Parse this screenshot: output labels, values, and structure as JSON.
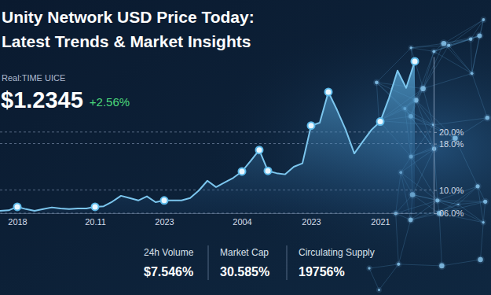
{
  "chart_data": {
    "type": "line",
    "title": "Unity Network USD Price Today:",
    "subtitle": "Latest Trends & Market Insights",
    "annotations": [
      "Real:TIME UICE",
      "$1.2345",
      "+2.56%"
    ],
    "categories": [
      null,
      null,
      "2018",
      null,
      null,
      null,
      null,
      null,
      null,
      null,
      null,
      "20.11",
      null,
      null,
      null,
      null,
      null,
      null,
      null,
      "2023",
      null,
      null,
      null,
      null,
      null,
      null,
      null,
      null,
      "2004",
      null,
      null,
      null,
      null,
      null,
      null,
      null,
      "2023",
      null,
      null,
      null,
      null,
      null,
      null,
      null,
      "2021",
      null,
      null,
      null,
      null
    ],
    "series": [
      {
        "type": "area",
        "color": "#7cc6ee",
        "values": [
          6.4,
          6.5,
          7.1,
          6.7,
          6.4,
          6.7,
          7.0,
          6.8,
          6.7,
          6.8,
          6.8,
          7.1,
          7.2,
          8.0,
          9.0,
          8.6,
          8.2,
          8.9,
          7.9,
          8.2,
          8.2,
          8.2,
          8.6,
          9.9,
          11.6,
          10.5,
          11.3,
          12.1,
          13.2,
          15.0,
          16.9,
          13.3,
          12.9,
          12.7,
          14.0,
          14.6,
          21.1,
          21.6,
          26.9,
          23.8,
          20.4,
          16.3,
          18.4,
          20.4,
          21.8,
          25.8,
          30.6,
          27.6,
          32.2
        ]
      },
      {
        "type": "scatter",
        "color": "#eaf7ff",
        "marker": "circle",
        "values": [
          null,
          null,
          7.1,
          null,
          null,
          null,
          null,
          null,
          null,
          null,
          null,
          7.1,
          null,
          null,
          null,
          null,
          null,
          null,
          null,
          8.2,
          null,
          null,
          null,
          null,
          null,
          null,
          null,
          null,
          13.2,
          null,
          16.9,
          13.3,
          null,
          null,
          null,
          null,
          21.1,
          null,
          26.9,
          null,
          null,
          null,
          null,
          null,
          21.8,
          null,
          null,
          null,
          32.2
        ]
      }
    ],
    "ylim": [
      6,
      33
    ],
    "yticks": [
      {
        "value": 20,
        "label": "20.0%"
      },
      {
        "value": 18,
        "label": "18.0%"
      },
      {
        "value": 10,
        "label": "10.0%"
      },
      {
        "value": 6,
        "label": "06.0%"
      }
    ],
    "grid": true,
    "stats": [
      {
        "label": "24h Volume",
        "value": "$7.546%"
      },
      {
        "label": "Market Cap",
        "value": "30.585%"
      },
      {
        "label": "Circulating Supply",
        "value": "19756%"
      }
    ]
  }
}
